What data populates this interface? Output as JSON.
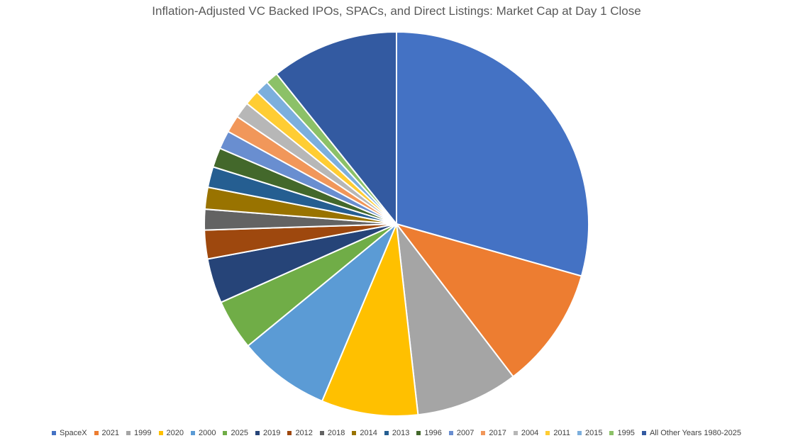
{
  "chart_data": {
    "type": "pie",
    "title": "Inflation-Adjusted VC Backed IPOs, SPACs, and Direct Listings: Market Cap at Day 1 Close",
    "legend_position": "bottom",
    "slices": [
      {
        "label": "SpaceX",
        "value": 30.4,
        "color": "#4472C4"
      },
      {
        "label": "2021",
        "value": 10.6,
        "color": "#ED7D31"
      },
      {
        "label": "1999",
        "value": 8.9,
        "color": "#A5A5A5"
      },
      {
        "label": "2020",
        "value": 8.4,
        "color": "#FFC000"
      },
      {
        "label": "2000",
        "value": 8.0,
        "color": "#5B9BD5"
      },
      {
        "label": "2025",
        "value": 4.4,
        "color": "#70AD47"
      },
      {
        "label": "2019",
        "value": 3.9,
        "color": "#264478"
      },
      {
        "label": "2012",
        "value": 2.5,
        "color": "#9E480E"
      },
      {
        "label": "2018",
        "value": 1.8,
        "color": "#636363"
      },
      {
        "label": "2014",
        "value": 1.9,
        "color": "#997300"
      },
      {
        "label": "2013",
        "value": 1.8,
        "color": "#255E91"
      },
      {
        "label": "1996",
        "value": 1.7,
        "color": "#43682B"
      },
      {
        "label": "2007",
        "value": 1.6,
        "color": "#698ED0"
      },
      {
        "label": "2017",
        "value": 1.5,
        "color": "#F1975A"
      },
      {
        "label": "2004",
        "value": 1.4,
        "color": "#B7B7B7"
      },
      {
        "label": "2011",
        "value": 1.3,
        "color": "#FFCD33"
      },
      {
        "label": "2015",
        "value": 1.2,
        "color": "#7CAFDD"
      },
      {
        "label": "1995",
        "value": 1.1,
        "color": "#8CC168"
      },
      {
        "label": "All Other Years 1980-2025",
        "value": 11.1,
        "color": "#335AA1"
      }
    ]
  }
}
